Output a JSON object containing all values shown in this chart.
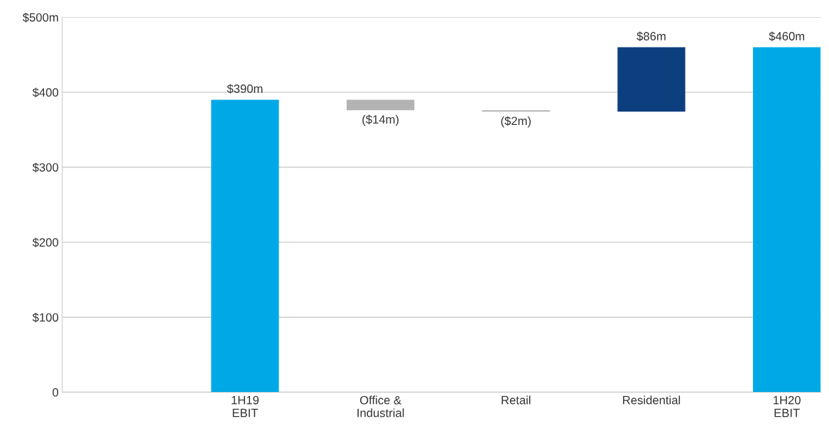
{
  "chart_data": {
    "type": "bar",
    "categories": [
      "1H19\nEBIT",
      "Office &\nIndustrial",
      "Retail",
      "Residential",
      "1H20\nEBIT"
    ],
    "values": [
      390,
      -14,
      -2,
      86,
      460
    ],
    "base": [
      0,
      390,
      376,
      374,
      0
    ],
    "colors": [
      "#00a9e6",
      "#b3b3b3",
      "#b3b3b3",
      "#0d3f7f",
      "#00a9e6"
    ],
    "value_labels": [
      "$390m",
      "($14m)",
      "($2m)",
      "$86m",
      "$460m"
    ],
    "ylim": [
      0,
      500
    ],
    "yticks": [
      {
        "value": 0,
        "label": "0"
      },
      {
        "value": 100,
        "label": "$100"
      },
      {
        "value": 200,
        "label": "$200"
      },
      {
        "value": 300,
        "label": "$300"
      },
      {
        "value": 400,
        "label": "$400"
      },
      {
        "value": 500,
        "label": "$500m"
      }
    ],
    "grid": "y",
    "legend": false
  }
}
